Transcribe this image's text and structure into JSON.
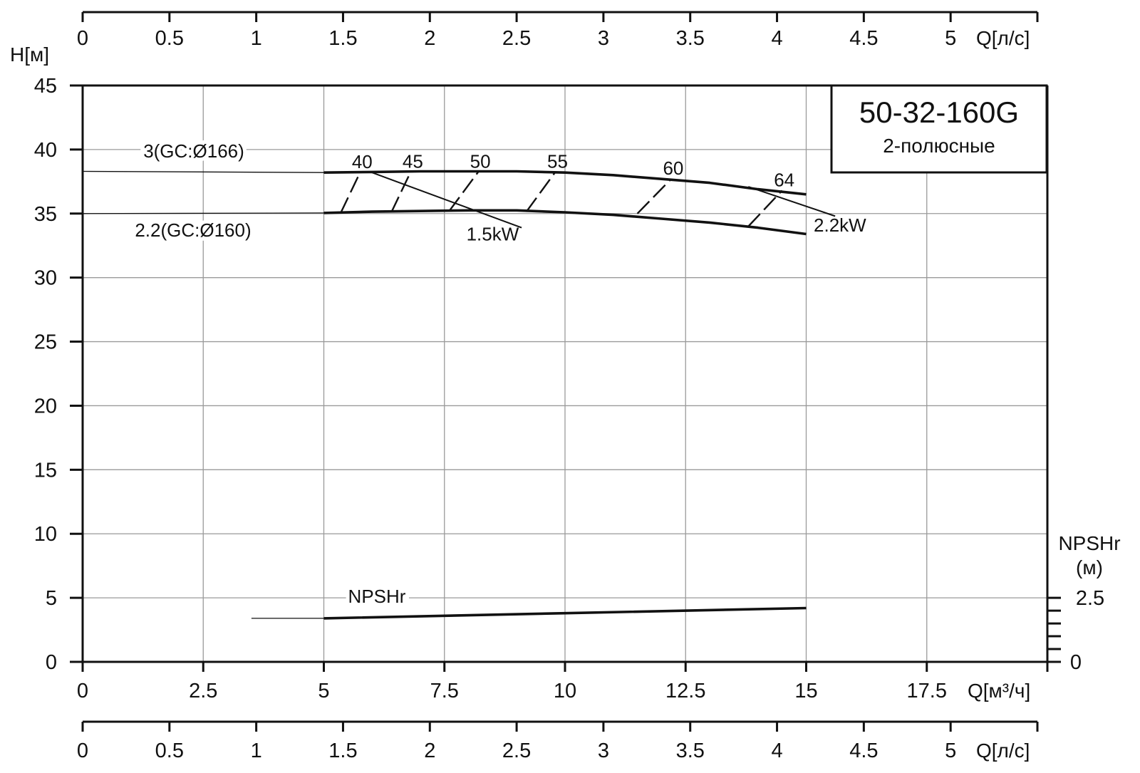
{
  "chart_data": {
    "type": "line",
    "title": "50-32-160G",
    "subtitle": "2-полюсные",
    "ylabel": "H[м]",
    "xlabel": "Q[м³/ч]",
    "ylim": [
      0,
      45
    ],
    "xlim": [
      0,
      20
    ],
    "grid": true,
    "x_ticks": [
      "0",
      "2.5",
      "5",
      "7.5",
      "10",
      "12.5",
      "15",
      "17.5"
    ],
    "y_ticks": [
      "0",
      "5",
      "10",
      "15",
      "20",
      "25",
      "30",
      "35",
      "40",
      "45"
    ],
    "top_axis": {
      "label": "Q[л/с]",
      "ticks": [
        "0",
        "0.5",
        "1",
        "1.5",
        "2",
        "2.5",
        "3",
        "3.5",
        "4",
        "4.5",
        "5"
      ]
    },
    "bottom_axis": {
      "label": "Q[л/с]",
      "ticks": [
        "0",
        "0.5",
        "1",
        "1.5",
        "2",
        "2.5",
        "3",
        "3.5",
        "4",
        "4.5",
        "5"
      ]
    },
    "npsh_axis": {
      "label_line1": "NPSHr",
      "label_line2": "(м)",
      "ticks": [
        "0",
        "2.5"
      ],
      "ylim": [
        0,
        2.5
      ]
    },
    "series": [
      {
        "name": "3(GC:Ø166)",
        "extrapolated": [
          [
            0,
            38.3
          ],
          [
            5,
            38.2
          ]
        ],
        "x": [
          5,
          6,
          7,
          8,
          9,
          10,
          11,
          12,
          13,
          14,
          15
        ],
        "y": [
          38.2,
          38.25,
          38.3,
          38.3,
          38.3,
          38.2,
          38.0,
          37.7,
          37.4,
          36.9,
          36.5
        ]
      },
      {
        "name": "2.2(GC:Ø160)",
        "extrapolated": [
          [
            0,
            35.0
          ],
          [
            5,
            35.05
          ]
        ],
        "x": [
          5,
          6,
          7,
          8,
          9,
          10,
          11,
          12,
          13,
          14,
          15
        ],
        "y": [
          35.05,
          35.15,
          35.2,
          35.25,
          35.25,
          35.1,
          34.9,
          34.6,
          34.3,
          33.9,
          33.4
        ]
      },
      {
        "name": "NPSHr",
        "extrapolated": [
          [
            3.5,
            3.4
          ],
          [
            5,
            3.4
          ]
        ],
        "x": [
          5,
          10,
          15
        ],
        "y": [
          3.4,
          3.8,
          4.2
        ]
      }
    ],
    "efficiency_lines": [
      {
        "label": "40",
        "x": [
          5.35,
          5.75
        ],
        "y": [
          35.05,
          38.2
        ]
      },
      {
        "label": "45",
        "x": [
          6.4,
          6.8
        ],
        "y": [
          35.1,
          38.25
        ]
      },
      {
        "label": "50",
        "x": [
          7.6,
          8.2
        ],
        "y": [
          35.2,
          38.25
        ]
      },
      {
        "label": "55",
        "x": [
          9.2,
          9.8
        ],
        "y": [
          35.15,
          38.25
        ]
      },
      {
        "label": "60",
        "x": [
          11.5,
          12.2
        ],
        "y": [
          35.0,
          37.7
        ]
      },
      {
        "label": "64",
        "x": [
          13.8,
          14.5
        ],
        "y": [
          34.0,
          36.8
        ]
      }
    ],
    "power_labels": [
      {
        "label": "1.5kW",
        "line_x": [
          6.0,
          9.1
        ],
        "line_y": [
          38.2,
          33.9
        ],
        "text_x": 8.5,
        "text_y": 32.9
      },
      {
        "label": "2.2kW",
        "line_x": [
          13.8,
          15.6
        ],
        "line_y": [
          37.1,
          34.8
        ],
        "text_x": 15.7,
        "text_y": 33.6
      }
    ]
  }
}
